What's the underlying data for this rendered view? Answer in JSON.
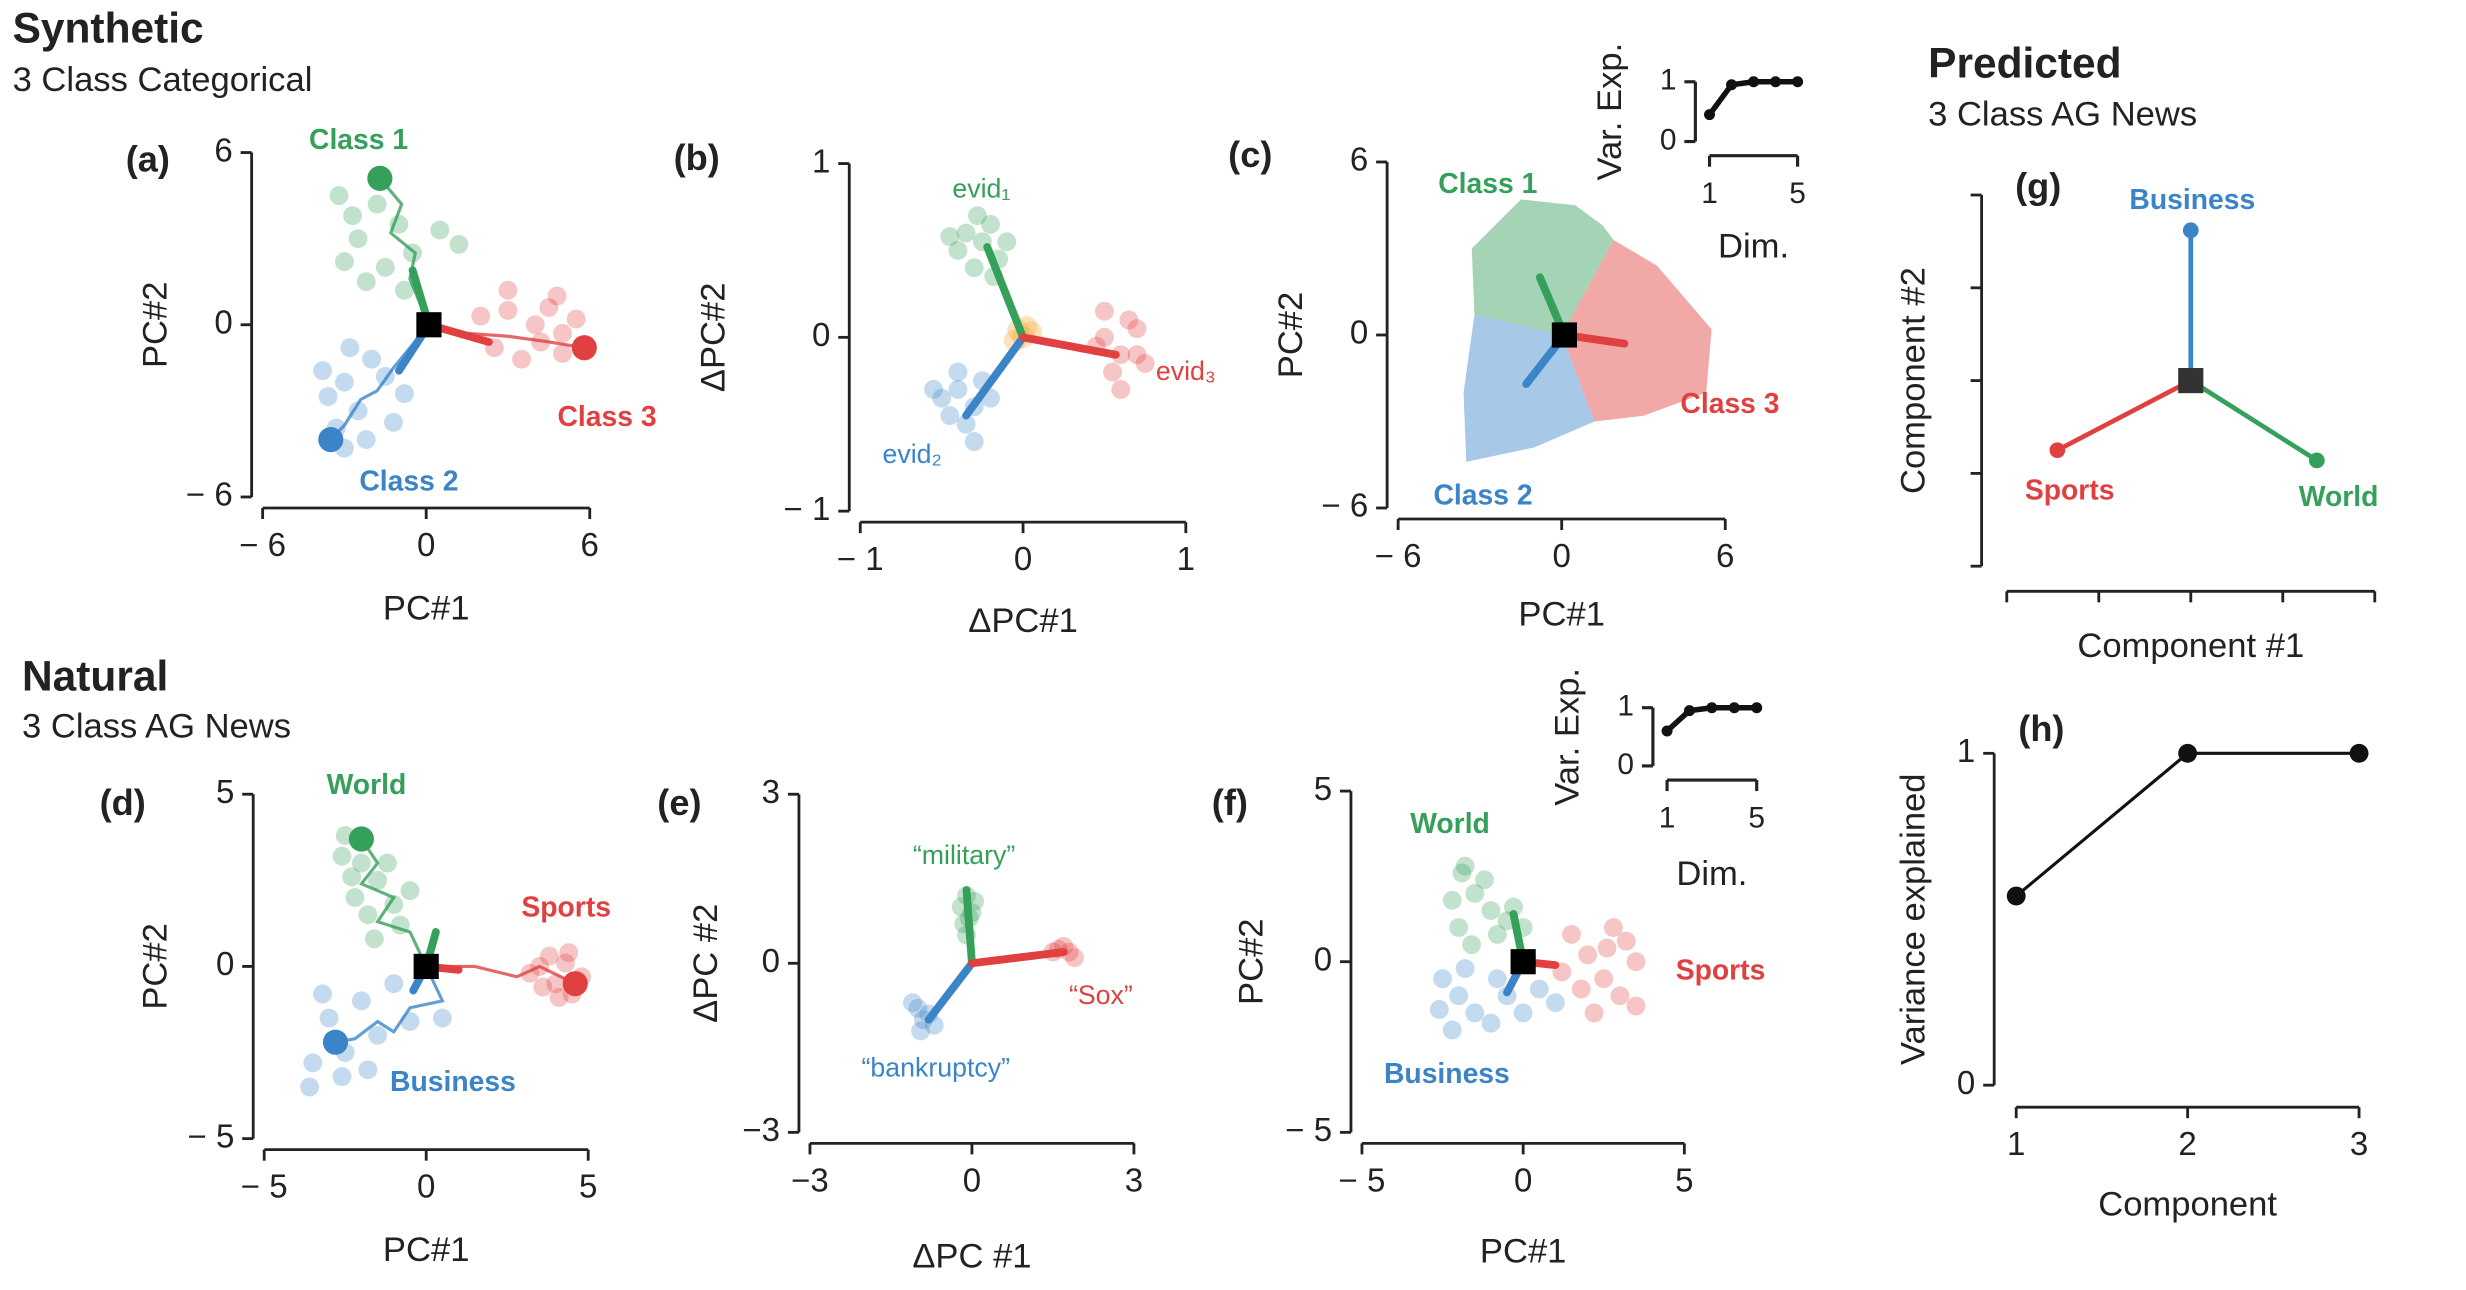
{
  "sections": [
    {
      "title": "Synthetic",
      "subtitle": "3 Class Categorical"
    },
    {
      "title": "Natural",
      "subtitle": "3 Class AG News"
    },
    {
      "title": "Predicted",
      "subtitle": "3 Class AG News"
    }
  ],
  "chart_data": [
    {
      "type": "scatter",
      "label": "(a)",
      "xlabel": "PC#1",
      "ylabel": "PC#2",
      "xlim": [
        -6,
        6
      ],
      "ylim": [
        -6,
        6
      ],
      "xticks": [
        {
          "value": -6,
          "label": "− 6"
        },
        0,
        6
      ],
      "yticks": [
        {
          "value": -6,
          "label": "− 6"
        },
        0,
        6
      ],
      "origin": [
        0.1,
        0
      ],
      "series": [
        {
          "name": "Class 1",
          "color": "#35a05a",
          "x": [
            -2.5,
            -1.8,
            -1,
            -3,
            -0.5,
            -2.2,
            0.5,
            -1.5,
            -3.2,
            1.2,
            -0.8,
            -2.7
          ],
          "y": [
            3,
            4.2,
            3.5,
            2.2,
            2.5,
            1.5,
            3.3,
            2,
            4.5,
            2.8,
            1.2,
            3.8
          ],
          "path_x": [
            0.1,
            -0.6,
            -0.4,
            -1.3,
            -0.9,
            -1.7
          ],
          "path_y": [
            0,
            1.6,
            2.5,
            3.2,
            4.2,
            5.1
          ],
          "end": [
            -1.7,
            5.1
          ],
          "readout": [
            -0.5,
            1.9
          ]
        },
        {
          "name": "Class 2",
          "color": "#3b84c8",
          "x": [
            -3,
            -2.5,
            -3.6,
            -2,
            -1.2,
            -3.3,
            -2.8,
            -0.8,
            -3.8,
            -1.5,
            -2.2,
            -3
          ],
          "y": [
            -2,
            -3,
            -2.5,
            -1.2,
            -3.4,
            -3.6,
            -0.8,
            -2.4,
            -1.6,
            -1.8,
            -4,
            -4.3
          ],
          "path_x": [
            0.1,
            -1.2,
            -1.8,
            -2.4,
            -3,
            -3.5
          ],
          "path_y": [
            0,
            -1.5,
            -2.3,
            -2.6,
            -3.5,
            -4
          ],
          "end": [
            -3.5,
            -4
          ],
          "readout": [
            -1,
            -1.6
          ]
        },
        {
          "name": "Class 3",
          "color": "#e0403f",
          "x": [
            3,
            4,
            5,
            4.5,
            2.5,
            3.5,
            5.5,
            4.2,
            3,
            5,
            2,
            4.8
          ],
          "y": [
            0.5,
            0,
            -0.3,
            0.6,
            -0.8,
            -1.2,
            0.2,
            -0.6,
            1.2,
            -1,
            0.3,
            1
          ],
          "path_x": [
            0.1,
            1.5,
            3,
            4.5,
            5.8
          ],
          "path_y": [
            0,
            -0.3,
            -0.4,
            -0.6,
            -0.8
          ],
          "end": [
            5.8,
            -0.8
          ],
          "readout": [
            2.3,
            -0.6
          ]
        }
      ]
    },
    {
      "type": "scatter",
      "label": "(b)",
      "xlabel": "ΔPC#1",
      "ylabel": "ΔPC#2",
      "xlim": [
        -1,
        1
      ],
      "ylim": [
        -1,
        1
      ],
      "xticks": [
        {
          "value": -1,
          "label": "− 1"
        },
        0,
        1
      ],
      "yticks": [
        {
          "value": -1,
          "label": "− 1"
        },
        0,
        1
      ],
      "center_cloud": {
        "color": "#f5b041",
        "x": [
          0,
          0.05,
          -0.05,
          0.02,
          -0.03
        ],
        "y": [
          0,
          0.03,
          -0.02,
          0.06,
          0.04
        ]
      },
      "series": [
        {
          "name": "evid₁",
          "color": "#35a05a",
          "x": [
            -0.35,
            -0.25,
            -0.15,
            -0.4,
            -0.2,
            -0.3,
            -0.1,
            -0.45,
            -0.28,
            -0.18
          ],
          "y": [
            0.6,
            0.55,
            0.45,
            0.5,
            0.65,
            0.4,
            0.55,
            0.58,
            0.7,
            0.35
          ],
          "readout": [
            -0.22,
            0.52
          ]
        },
        {
          "name": "evid₂",
          "color": "#3b84c8",
          "x": [
            -0.4,
            -0.3,
            -0.5,
            -0.35,
            -0.25,
            -0.45,
            -0.55,
            -0.3,
            -0.4,
            -0.2
          ],
          "y": [
            -0.3,
            -0.4,
            -0.35,
            -0.5,
            -0.25,
            -0.45,
            -0.3,
            -0.6,
            -0.2,
            -0.35
          ],
          "readout": [
            -0.35,
            -0.45
          ]
        },
        {
          "name": "evid₃",
          "color": "#e0403f",
          "x": [
            0.5,
            0.6,
            0.7,
            0.55,
            0.65,
            0.45,
            0.75,
            0.6,
            0.5,
            0.7
          ],
          "y": [
            0,
            -0.1,
            0.05,
            -0.2,
            0.1,
            -0.05,
            -0.15,
            -0.3,
            0.15,
            -0.1
          ],
          "readout": [
            0.57,
            -0.1
          ]
        }
      ]
    },
    {
      "type": "scatter",
      "label": "(c)",
      "xlabel": "PC#1",
      "ylabel": "PC#2",
      "xlim": [
        -6,
        6
      ],
      "ylim": [
        -6,
        6
      ],
      "xticks": [
        {
          "value": -6,
          "label": "− 6"
        },
        0,
        6
      ],
      "yticks": [
        {
          "value": -6,
          "label": "− 6"
        },
        0,
        6
      ],
      "origin": [
        0.1,
        0
      ],
      "series": [
        {
          "name": "Class 1",
          "color": "#35a05a",
          "region_x": [
            0,
            -3.2,
            -3.3,
            -1.5,
            0.5,
            1.5,
            1.9
          ],
          "region_y": [
            0,
            0.7,
            3,
            4.7,
            4.5,
            3.8,
            3.3
          ],
          "readout": [
            -0.8,
            2
          ]
        },
        {
          "name": "Class 2",
          "color": "#3b84c8",
          "region_x": [
            0,
            1.2,
            -1,
            -3.5,
            -3.6,
            -3.2
          ],
          "region_y": [
            0,
            -3,
            -3.9,
            -4.4,
            -2,
            0.7
          ],
          "readout": [
            -1.3,
            -1.7
          ]
        },
        {
          "name": "Class 3",
          "color": "#e0403f",
          "region_x": [
            0,
            1.9,
            3.5,
            5.5,
            5.3,
            3,
            1.2
          ],
          "region_y": [
            0,
            3.3,
            2.4,
            0.2,
            -2,
            -2.8,
            -3
          ],
          "readout": [
            2.3,
            -0.3
          ]
        }
      ]
    },
    {
      "type": "line",
      "xlabel": "Dim.",
      "ylabel": "Var. Exp.",
      "x": [
        1,
        2,
        3,
        4,
        5
      ],
      "values": [
        0.45,
        0.95,
        1,
        1,
        1
      ],
      "color": "#111111",
      "xlim": [
        1,
        5
      ],
      "ylim": [
        0,
        1
      ],
      "xticks": [
        1,
        5
      ],
      "yticks": [
        0,
        1
      ]
    },
    {
      "type": "scatter",
      "label": "(d)",
      "xlabel": "PC#1",
      "ylabel": "PC#2",
      "xlim": [
        -5,
        5
      ],
      "ylim": [
        -5,
        5
      ],
      "xticks": [
        {
          "value": -5,
          "label": "− 5"
        },
        0,
        5
      ],
      "yticks": [
        {
          "value": -5,
          "label": "− 5"
        },
        0,
        5
      ],
      "origin": [
        0,
        0
      ],
      "series": [
        {
          "name": "World",
          "color": "#35a05a",
          "x": [
            -2.5,
            -2,
            -1.5,
            -1.8,
            -2.2,
            -1,
            -0.5,
            -2.6,
            -1.2,
            -1.6,
            -2.3,
            -0.8
          ],
          "y": [
            3.8,
            3,
            2.5,
            1.5,
            2,
            1.8,
            2.2,
            3.2,
            3,
            0.8,
            2.6,
            1.2
          ],
          "path_x": [
            0,
            -0.5,
            -1.5,
            -1,
            -2,
            -1.5,
            -2
          ],
          "path_y": [
            0,
            1,
            1.3,
            2,
            2.4,
            3,
            3.7
          ],
          "end": [
            -2,
            3.7
          ],
          "readout": [
            0.3,
            1
          ]
        },
        {
          "name": "Business",
          "color": "#3b84c8",
          "x": [
            -3,
            -2.5,
            -1.5,
            -3.5,
            -2,
            -0.5,
            -1.8,
            -3.2,
            0.5,
            -2.6,
            -1,
            -3.6
          ],
          "y": [
            -1.5,
            -2.5,
            -2,
            -2.8,
            -1,
            -1.6,
            -3,
            -0.8,
            -1.5,
            -3.2,
            -0.5,
            -3.5
          ],
          "path_x": [
            0,
            0.5,
            -0.5,
            -1,
            -1.5,
            -2.2,
            -2.8
          ],
          "path_y": [
            0,
            -1,
            -1.2,
            -1.9,
            -1.6,
            -2.1,
            -2.2
          ],
          "end": [
            -2.8,
            -2.2
          ],
          "readout": [
            -0.4,
            -0.7
          ]
        },
        {
          "name": "Sports",
          "color": "#e0403f",
          "x": [
            3.5,
            4,
            4.5,
            3.8,
            4.3,
            3.2,
            4.8,
            4.1,
            3.6,
            4.4
          ],
          "y": [
            0,
            -0.5,
            -0.8,
            0.3,
            0.1,
            -0.2,
            -0.3,
            -0.9,
            -0.6,
            0.4
          ],
          "path_x": [
            0,
            1.5,
            2.8,
            3.5,
            4.6
          ],
          "path_y": [
            0,
            0,
            -0.3,
            0,
            -0.5
          ],
          "end": [
            4.6,
            -0.5
          ],
          "readout": [
            1,
            -0.1
          ]
        }
      ]
    },
    {
      "type": "scatter",
      "label": "(e)",
      "xlabel": "ΔPC #1",
      "ylabel": "ΔPC #2",
      "xlim": [
        -3,
        3
      ],
      "ylim": [
        -3,
        3
      ],
      "xticks": [
        {
          "value": -3,
          "label": "−3"
        },
        0,
        3
      ],
      "yticks": [
        {
          "value": -3,
          "label": "−3"
        },
        0,
        3
      ],
      "series": [
        {
          "name": "“military”",
          "color": "#35a05a",
          "x": [
            -0.1,
            -0.2,
            0,
            -0.15,
            0.05,
            -0.1,
            -0.05
          ],
          "y": [
            1.2,
            1,
            0.9,
            0.7,
            1.1,
            0.5,
            0.8
          ],
          "readout": [
            -0.1,
            1.3
          ]
        },
        {
          "name": "“bankruptcy”",
          "color": "#3b84c8",
          "x": [
            -1,
            -0.9,
            -0.8,
            -1.1,
            -0.7,
            -0.95
          ],
          "y": [
            -0.8,
            -1,
            -0.9,
            -0.7,
            -1.1,
            -1.2
          ],
          "readout": [
            -0.8,
            -1
          ]
        },
        {
          "name": "“Sox”",
          "color": "#e0403f",
          "x": [
            1.5,
            1.7,
            1.9,
            1.6,
            1.8
          ],
          "y": [
            0.2,
            0.3,
            0.1,
            0.25,
            0.2
          ],
          "readout": [
            1.7,
            0.2
          ]
        }
      ]
    },
    {
      "type": "scatter",
      "label": "(f)",
      "xlabel": "PC#1",
      "ylabel": "PC#2",
      "xlim": [
        -5,
        5
      ],
      "ylim": [
        -5,
        5
      ],
      "xticks": [
        {
          "value": -5,
          "label": "− 5"
        },
        0,
        5
      ],
      "yticks": [
        {
          "value": -5,
          "label": "− 5"
        },
        0,
        5
      ],
      "origin": [
        0,
        0
      ],
      "series": [
        {
          "name": "World",
          "color": "#35a05a",
          "x": [
            -1.8,
            -1.5,
            -1,
            -2,
            -0.5,
            -1.2,
            -0.8,
            -2.2,
            -1.6,
            0,
            -0.3,
            -1.9
          ],
          "y": [
            2.8,
            2,
            1.5,
            1,
            1.2,
            2.4,
            0.8,
            1.8,
            0.5,
            1,
            1.6,
            2.6
          ],
          "readout": [
            -0.3,
            1.4
          ]
        },
        {
          "name": "Business",
          "color": "#3b84c8",
          "x": [
            -2.5,
            -2,
            -1.5,
            -1,
            -0.5,
            0,
            0.5,
            -2.2,
            -1.8,
            -0.8,
            -2.6,
            1
          ],
          "y": [
            -0.5,
            -1,
            -1.5,
            -1.8,
            -1,
            -1.5,
            -0.8,
            -2,
            -0.2,
            -0.5,
            -1.4,
            -1.2
          ],
          "readout": [
            -0.5,
            -0.9
          ]
        },
        {
          "name": "Sports",
          "color": "#e0403f",
          "x": [
            1.5,
            2,
            2.5,
            3,
            3.5,
            2.2,
            1.8,
            3.2,
            2.8,
            1.2,
            2.6,
            3.5
          ],
          "y": [
            0.8,
            0.2,
            -0.5,
            -1,
            0,
            -1.5,
            -0.8,
            0.6,
            1,
            -0.3,
            0.4,
            -1.3
          ],
          "readout": [
            1,
            -0.1
          ]
        }
      ]
    },
    {
      "type": "line",
      "xlabel": "Dim.",
      "ylabel": "Var. Exp.",
      "x": [
        1,
        2,
        3,
        4,
        5
      ],
      "values": [
        0.6,
        0.95,
        1,
        1,
        1
      ],
      "color": "#111111",
      "xlim": [
        1,
        5
      ],
      "ylim": [
        0,
        1
      ],
      "xticks": [
        1,
        5
      ],
      "yticks": [
        0,
        1
      ]
    },
    {
      "type": "scatter",
      "label": "(g)",
      "xlabel": "Component #1",
      "ylabel": "Component #2",
      "xlim": [
        -2,
        2
      ],
      "ylim": [
        -2,
        2
      ],
      "xticks": [
        -2,
        -1,
        0,
        1,
        2
      ],
      "yticks": [
        -2,
        -1,
        0,
        1,
        2
      ],
      "origin": [
        0,
        0
      ],
      "series": [
        {
          "name": "Business",
          "color": "#3b84c8",
          "end": [
            0,
            1.62
          ]
        },
        {
          "name": "Sports",
          "color": "#e0403f",
          "end": [
            -1.45,
            -0.75
          ]
        },
        {
          "name": "World",
          "color": "#35a05a",
          "end": [
            1.37,
            -0.86
          ]
        }
      ]
    },
    {
      "type": "line",
      "label": "(h)",
      "xlabel": "Component",
      "ylabel": "Variance explained",
      "x": [
        1,
        2,
        3
      ],
      "values": [
        0.57,
        1,
        1
      ],
      "color": "#111111",
      "xlim": [
        1,
        3
      ],
      "ylim": [
        0,
        1
      ],
      "xticks": [
        1,
        2,
        3
      ],
      "yticks": [
        0,
        1
      ]
    }
  ]
}
